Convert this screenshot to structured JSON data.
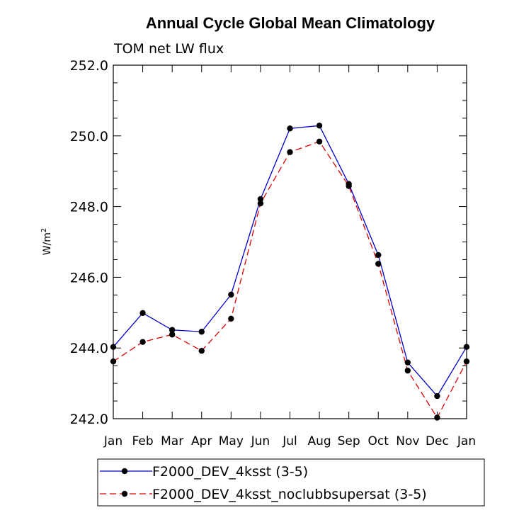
{
  "chart_data": {
    "type": "line",
    "title": "Annual Cycle Global Mean Climatology",
    "subtitle": "TOM net LW flux",
    "ylabel": "W/m",
    "ylabel_sup": "2",
    "ylim": [
      242.0,
      252.0
    ],
    "yticks": [
      "242.0",
      "244.0",
      "246.0",
      "248.0",
      "250.0",
      "252.0"
    ],
    "categories": [
      "Jan",
      "Feb",
      "Mar",
      "Apr",
      "May",
      "Jun",
      "Jul",
      "Aug",
      "Sep",
      "Oct",
      "Nov",
      "Dec",
      "Jan"
    ],
    "series": [
      {
        "name": "F2000_DEV_4ksst (3-5)",
        "color": "#0000cc",
        "dash": "solid",
        "values": [
          244.03,
          244.99,
          244.51,
          244.46,
          245.51,
          248.21,
          250.21,
          250.29,
          248.64,
          246.63,
          243.59,
          242.64,
          244.03
        ]
      },
      {
        "name": "F2000_DEV_4ksst_noclubbsupersat (3-5)",
        "color": "#e00000",
        "dash": "dashed",
        "values": [
          243.62,
          244.17,
          244.38,
          243.92,
          244.83,
          248.09,
          249.54,
          249.84,
          248.58,
          246.38,
          243.36,
          242.03,
          243.62
        ]
      }
    ]
  }
}
